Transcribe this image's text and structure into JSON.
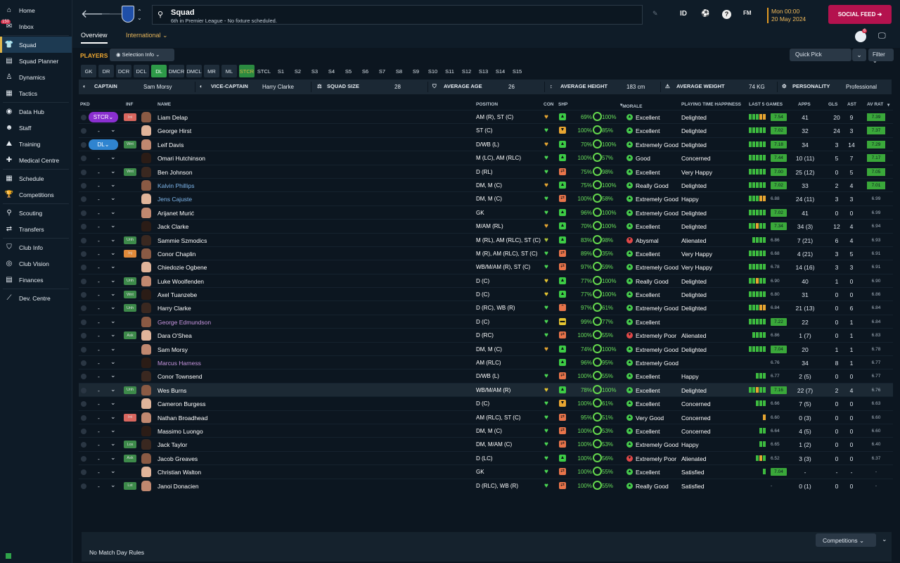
{
  "sidebar": {
    "items": [
      {
        "label": "Home",
        "icon": "home-icon"
      },
      {
        "label": "Inbox",
        "icon": "inbox-icon",
        "badge": "150"
      },
      {
        "label": "Squad",
        "icon": "squad-icon",
        "active": true
      },
      {
        "label": "Squad Planner",
        "icon": "planner-icon"
      },
      {
        "label": "Dynamics",
        "icon": "dynamics-icon"
      },
      {
        "label": "Tactics",
        "icon": "tactics-icon"
      },
      {
        "label": "Data Hub",
        "icon": "datahub-icon"
      },
      {
        "label": "Staff",
        "icon": "staff-icon"
      },
      {
        "label": "Training",
        "icon": "training-icon"
      },
      {
        "label": "Medical Centre",
        "icon": "medical-icon"
      },
      {
        "label": "Schedule",
        "icon": "schedule-icon"
      },
      {
        "label": "Competitions",
        "icon": "trophy-icon"
      },
      {
        "label": "Scouting",
        "icon": "scouting-icon"
      },
      {
        "label": "Transfers",
        "icon": "transfers-icon"
      },
      {
        "label": "Club Info",
        "icon": "shield-icon"
      },
      {
        "label": "Club Vision",
        "icon": "vision-icon"
      },
      {
        "label": "Finances",
        "icon": "finances-icon"
      },
      {
        "label": "Dev. Centre",
        "icon": "dev-icon"
      }
    ]
  },
  "header": {
    "title": "Squad",
    "subtitle": "6th in Premier League - No fixture scheduled.",
    "tab_overview": "Overview",
    "tab_international": "International",
    "id_label": "ID",
    "fm_label": "FM",
    "help": "?",
    "date_time": "Mon 00:00",
    "date": "20 May 2024",
    "social_feed": "SOCIAL FEED",
    "notif_count": "6"
  },
  "subbar": {
    "players": "PLAYERS",
    "selection_info": "Selection Info",
    "quick_pick": "Quick Pick",
    "filter": "Filter"
  },
  "positions": [
    "GK",
    "DR",
    "DCR",
    "DCL",
    "DL",
    "DMCR",
    "DMCL",
    "MR",
    "ML",
    "STCR",
    "STCL",
    "S1",
    "S2",
    "S3",
    "S4",
    "S5",
    "S6",
    "S7",
    "S8",
    "S9",
    "S10",
    "S11",
    "S12",
    "S13",
    "S14",
    "S15"
  ],
  "info": {
    "captain_lbl": "CAPTAIN",
    "captain": "Sam Morsy",
    "vice_lbl": "VICE-CAPTAIN",
    "vice": "Harry Clarke",
    "size_lbl": "SQUAD SIZE",
    "size": "28",
    "age_lbl": "AVERAGE AGE",
    "age": "26",
    "height_lbl": "AVERAGE HEIGHT",
    "height": "183 cm",
    "weight_lbl": "AVERAGE WEIGHT",
    "weight": "74 KG",
    "pers_lbl": "PERSONALITY",
    "pers": "Professional"
  },
  "columns": {
    "pkd": "PKD",
    "inf": "INF",
    "name": "NAME",
    "position": "POSITION",
    "con": "CON",
    "shp": "SHP",
    "morale": "MORALE",
    "pth": "PLAYING TIME HAPPINESS",
    "last5": "LAST 5 GAMES",
    "apps": "APPS",
    "gls": "GLS",
    "ast": "AST",
    "avr": "AV RAT"
  },
  "colors": {
    "accent": "#e0b64a",
    "green": "#3aa83a",
    "social": "#b4124e"
  },
  "players": [
    {
      "pkd": "STCR",
      "inf": "Int",
      "name": "Liam Delap",
      "pos": "AM (R), ST (C)",
      "con": "#e6a531",
      "shp": "up",
      "pct": "69%",
      "fit": "100%",
      "mor": "Excellent",
      "pth": "Delighted",
      "bars": "gggoo",
      "l5": "7.54",
      "apps": "41",
      "gls": "20",
      "ast": "9",
      "avr": "7.39"
    },
    {
      "pkd": "-",
      "inf": "",
      "name": "George Hirst",
      "pos": "ST (C)",
      "con": "#4ad652",
      "shp": "down",
      "pct": "100%",
      "fit": "85%",
      "mor": "Excellent",
      "pth": "Delighted",
      "bars": "ggggg",
      "l5": "7.02",
      "apps": "32",
      "gls": "24",
      "ast": "3",
      "avr": "7.37"
    },
    {
      "pkd": "DL",
      "inf": "Wnt",
      "name": "Leif Davis",
      "pos": "D/WB (L)",
      "con": "#e6a531",
      "shp": "up",
      "pct": "70%",
      "fit": "100%",
      "mor": "Extremely Good",
      "pth": "Delighted",
      "bars": "ggggg",
      "l5": "7.18",
      "apps": "34",
      "gls": "3",
      "ast": "14",
      "avr": "7.29"
    },
    {
      "pkd": "-",
      "inf": "",
      "name": "Omari Hutchinson",
      "pos": "M (LC), AM (RLC)",
      "con": "#4ad652",
      "shp": "up",
      "pct": "100%",
      "fit": "57%",
      "mor": "Good",
      "pth": "Concerned",
      "bars": "ggggg",
      "l5": "7.44",
      "apps": "10 (11)",
      "gls": "5",
      "ast": "7",
      "avr": "7.17"
    },
    {
      "pkd": "-",
      "inf": "Wnt",
      "name": "Ben Johnson",
      "pos": "D (RL)",
      "con": "#4ad652",
      "shp": "side",
      "pct": "75%",
      "fit": "98%",
      "mor": "Excellent",
      "pth": "Very Happy",
      "bars": "ggggg",
      "l5": "7.00",
      "apps": "25 (12)",
      "gls": "0",
      "ast": "5",
      "avr": "7.05"
    },
    {
      "pkd": "-",
      "inf": "",
      "name": "Kalvin Phillips",
      "nc": "blue",
      "pos": "DM, M (C)",
      "con": "#e6a531",
      "shp": "up",
      "pct": "75%",
      "fit": "100%",
      "mor": "Really Good",
      "pth": "Delighted",
      "bars": "ggggg",
      "l5": "7.02",
      "apps": "33",
      "gls": "2",
      "ast": "4",
      "avr": "7.01"
    },
    {
      "pkd": "-",
      "inf": "",
      "name": "Jens Cajuste",
      "nc": "blue",
      "pos": "DM, M (C)",
      "con": "#4ad652",
      "shp": "side",
      "pct": "100%",
      "fit": "58%",
      "mor": "Extremely Good",
      "pth": "Happy",
      "bars": "gggoo",
      "l5": "6.88",
      "apps": "24 (11)",
      "gls": "3",
      "ast": "3",
      "avr": "6.99"
    },
    {
      "pkd": "-",
      "inf": "",
      "name": "Arijanet Murić",
      "pos": "GK",
      "con": "#4ad652",
      "shp": "up",
      "pct": "96%",
      "fit": "100%",
      "mor": "Extremely Good",
      "pth": "Delighted",
      "bars": "ggggg",
      "l5": "7.02",
      "apps": "41",
      "gls": "0",
      "ast": "0",
      "avr": "6.99"
    },
    {
      "pkd": "-",
      "inf": "",
      "name": "Jack Clarke",
      "pos": "M/AM (RL)",
      "con": "#e6a531",
      "shp": "up",
      "pct": "70%",
      "fit": "100%",
      "mor": "Excellent",
      "pth": "Delighted",
      "bars": "ggogg",
      "l5": "7.34",
      "apps": "34 (3)",
      "gls": "12",
      "ast": "4",
      "avr": "6.94"
    },
    {
      "pkd": "-",
      "inf": "Unh",
      "name": "Sammie Szmodics",
      "pos": "M (RL), AM (RLC), ST (C)",
      "con": "#b0c43a",
      "shp": "up",
      "pct": "83%",
      "fit": "98%",
      "mor": "Abysmal",
      "pth": "Alienated",
      "bars": "gggg",
      "l5": "6.86",
      "apps": "7 (21)",
      "gls": "6",
      "ast": "4",
      "avr": "6.93"
    },
    {
      "pkd": "-",
      "inf": "Inj",
      "name": "Conor Chaplin",
      "pos": "M (R), AM (RLC), ST (C)",
      "con": "#4ad652",
      "shp": "side",
      "pct": "89%",
      "fit": "35%",
      "mor": "Excellent",
      "pth": "Very Happy",
      "bars": "ggggg",
      "l5": "6.68",
      "apps": "4 (21)",
      "gls": "3",
      "ast": "5",
      "avr": "6.91"
    },
    {
      "pkd": "-",
      "inf": "",
      "name": "Chiedozie Ogbene",
      "pos": "WB/M/AM (R), ST (C)",
      "con": "#4ad652",
      "shp": "side",
      "pct": "97%",
      "fit": "59%",
      "mor": "Extremely Good",
      "pth": "Very Happy",
      "bars": "ggggg",
      "l5": "6.78",
      "apps": "14 (16)",
      "gls": "3",
      "ast": "3",
      "avr": "6.91"
    },
    {
      "pkd": "-",
      "inf": "Unh",
      "name": "Luke Woolfenden",
      "pos": "D (C)",
      "con": "#e6c531",
      "shp": "up",
      "pct": "77%",
      "fit": "100%",
      "mor": "Really Good",
      "pth": "Delighted",
      "bars": "ggogg",
      "l5": "6.90",
      "apps": "40",
      "gls": "1",
      "ast": "0",
      "avr": "6.90"
    },
    {
      "pkd": "-",
      "inf": "Wnt",
      "name": "Axel Tuanzebe",
      "pos": "D (C)",
      "con": "#e6c531",
      "shp": "up",
      "pct": "77%",
      "fit": "100%",
      "mor": "Excellent",
      "pth": "Delighted",
      "bars": "ggggg",
      "l5": "6.80",
      "apps": "31",
      "gls": "0",
      "ast": "0",
      "avr": "6.86"
    },
    {
      "pkd": "-",
      "inf": "Unh",
      "name": "Harry Clarke",
      "pos": "D (RC), WB (R)",
      "con": "#4ad652",
      "shp": "high",
      "pct": "97%",
      "fit": "61%",
      "mor": "Extremely Good",
      "pth": "Delighted",
      "bars": "gggoo",
      "l5": "6.84",
      "apps": "21 (13)",
      "gls": "0",
      "ast": "6",
      "avr": "6.84"
    },
    {
      "pkd": "-",
      "inf": "",
      "name": "George Edmundson",
      "nc": "purple",
      "pos": "D (C)",
      "con": "#4ad652",
      "shp": "mid",
      "pct": "99%",
      "fit": "77%",
      "mor": "Excellent",
      "pth": "",
      "bars": "ggggg",
      "l5": "7.22",
      "apps": "22",
      "gls": "0",
      "ast": "1",
      "avr": "6.84"
    },
    {
      "pkd": "-",
      "inf": "Ask",
      "name": "Dara O'Shea",
      "pos": "D (RC)",
      "con": "#4ad652",
      "shp": "side",
      "pct": "100%",
      "fit": "55%",
      "mor": "Extremely Poor",
      "pth": "Alienated",
      "bars": "gggg",
      "l5": "6.86",
      "apps": "1 (7)",
      "gls": "0",
      "ast": "1",
      "avr": "6.83"
    },
    {
      "pkd": "-",
      "inf": "",
      "name": "Sam Morsy",
      "pos": "DM, M (C)",
      "con": "#e6a531",
      "shp": "up",
      "pct": "74%",
      "fit": "100%",
      "mor": "Extremely Good",
      "pth": "Delighted",
      "bars": "ggggg",
      "l5": "7.04",
      "apps": "20",
      "gls": "1",
      "ast": "1",
      "avr": "6.78"
    },
    {
      "pkd": "-",
      "inf": "",
      "name": "Marcus Harness",
      "nc": "purple",
      "pos": "AM (RLC)",
      "con": "",
      "shp": "up",
      "pct": "96%",
      "fit": "95%",
      "mor": "Extremely Good",
      "pth": "",
      "bars": "",
      "l5": "6.76",
      "apps": "34",
      "gls": "8",
      "ast": "1",
      "avr": "6.77"
    },
    {
      "pkd": "-",
      "inf": "",
      "name": "Conor Townsend",
      "pos": "D/WB (L)",
      "con": "#4ad652",
      "shp": "side",
      "pct": "100%",
      "fit": "55%",
      "mor": "Excellent",
      "pth": "Happy",
      "bars": "ggg",
      "l5": "6.77",
      "apps": "2 (5)",
      "gls": "0",
      "ast": "0",
      "avr": "6.77"
    },
    {
      "pkd": "-",
      "inf": "Unh",
      "name": "Wes Burns",
      "pos": "WB/M/AM (R)",
      "con": "#e6c531",
      "shp": "up",
      "pct": "78%",
      "fit": "100%",
      "mor": "Excellent",
      "pth": "Delighted",
      "bars": "ggogg",
      "l5": "7.16",
      "apps": "22 (7)",
      "gls": "2",
      "ast": "4",
      "avr": "6.76",
      "sel": true
    },
    {
      "pkd": "-",
      "inf": "",
      "name": "Cameron Burgess",
      "pos": "D (C)",
      "con": "#4ad652",
      "shp": "down",
      "pct": "100%",
      "fit": "61%",
      "mor": "Excellent",
      "pth": "Concerned",
      "bars": "ggg",
      "l5": "6.66",
      "apps": "7 (5)",
      "gls": "0",
      "ast": "0",
      "avr": "6.63"
    },
    {
      "pkd": "-",
      "inf": "Int",
      "name": "Nathan Broadhead",
      "pos": "AM (RLC), ST (C)",
      "con": "#4ad652",
      "shp": "side",
      "pct": "95%",
      "fit": "51%",
      "mor": "Very Good",
      "pth": "Concerned",
      "bars": "o",
      "l5": "6.60",
      "apps": "0 (3)",
      "gls": "0",
      "ast": "0",
      "avr": "6.60"
    },
    {
      "pkd": "-",
      "inf": "",
      "name": "Massimo Luongo",
      "pos": "DM, M (C)",
      "con": "#4ad652",
      "shp": "side",
      "pct": "100%",
      "fit": "53%",
      "mor": "Excellent",
      "pth": "Concerned",
      "bars": "gg",
      "l5": "6.64",
      "apps": "4 (5)",
      "gls": "0",
      "ast": "0",
      "avr": "6.60"
    },
    {
      "pkd": "-",
      "inf": "Los",
      "name": "Jack Taylor",
      "pos": "DM, M/AM (C)",
      "con": "#4ad652",
      "shp": "side",
      "pct": "100%",
      "fit": "53%",
      "mor": "Extremely Good",
      "pth": "Happy",
      "bars": "gg",
      "l5": "6.65",
      "apps": "1 (2)",
      "gls": "0",
      "ast": "0",
      "avr": "6.40"
    },
    {
      "pkd": "-",
      "inf": "Ask",
      "name": "Jacob Greaves",
      "pos": "D (LC)",
      "con": "#4ad652",
      "shp": "up",
      "pct": "100%",
      "fit": "56%",
      "mor": "Extremely Poor",
      "pth": "Alienated",
      "bars": "gog",
      "l5": "6.52",
      "apps": "3 (3)",
      "gls": "0",
      "ast": "0",
      "avr": "6.37"
    },
    {
      "pkd": "-",
      "inf": "",
      "name": "Christian Walton",
      "pos": "GK",
      "con": "#4ad652",
      "shp": "side",
      "pct": "100%",
      "fit": "55%",
      "mor": "Excellent",
      "pth": "Satisfied",
      "bars": "g",
      "l5": "7.04",
      "apps": "-",
      "gls": "-",
      "ast": "-",
      "avr": "-"
    },
    {
      "pkd": "-",
      "inf": "Lst",
      "name": "Janoi Donacien",
      "pos": "D (RLC), WB (R)",
      "con": "#4ad652",
      "shp": "side",
      "pct": "100%",
      "fit": "55%",
      "mor": "Really Good",
      "pth": "Satisfied",
      "bars": "",
      "l5": "-",
      "apps": "0 (1)",
      "gls": "0",
      "ast": "0",
      "avr": "-"
    }
  ],
  "bottom": {
    "rules": "No Match Day Rules",
    "competitions": "Competitions"
  }
}
